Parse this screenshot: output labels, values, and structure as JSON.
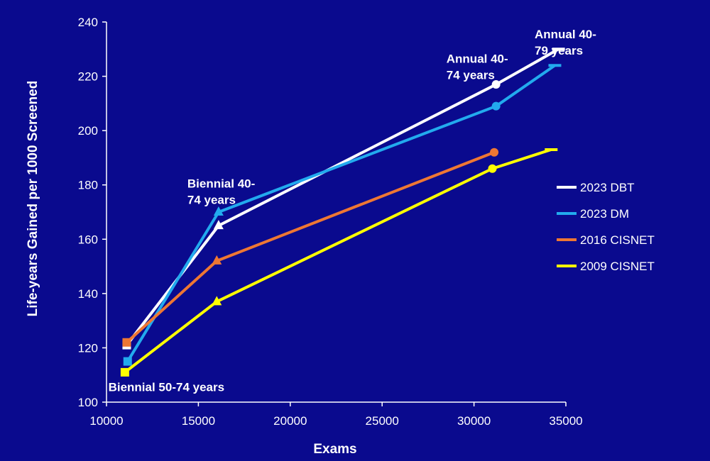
{
  "chart_data": {
    "type": "line",
    "xlabel": "Exams",
    "ylabel": "Life-years Gained per 1000 Screened",
    "xlim": [
      10000,
      35000
    ],
    "ylim": [
      100,
      240
    ],
    "xticks": [
      10000,
      15000,
      20000,
      25000,
      30000,
      35000
    ],
    "yticks": [
      100,
      120,
      140,
      160,
      180,
      200,
      220,
      240
    ],
    "grid": false,
    "legend_position": "right",
    "series": [
      {
        "name": "2023 DBT",
        "color": "#ffffff",
        "points": [
          [
            11100,
            121
          ],
          [
            16100,
            165
          ],
          [
            31200,
            217
          ],
          [
            34600,
            230
          ]
        ],
        "markers": [
          "square",
          "triangle",
          "circle",
          "dash"
        ]
      },
      {
        "name": "2023 DM",
        "color": "#22aaee",
        "points": [
          [
            11150,
            115
          ],
          [
            16100,
            170
          ],
          [
            31200,
            209
          ],
          [
            34400,
            224
          ]
        ],
        "markers": [
          "square",
          "triangle",
          "circle",
          "dash"
        ]
      },
      {
        "name": "2016 CISNET",
        "color": "#ee7733",
        "points": [
          [
            11100,
            122
          ],
          [
            16000,
            152
          ],
          [
            31100,
            192
          ]
        ],
        "markers": [
          "square",
          "triangle",
          "circle"
        ]
      },
      {
        "name": "2009 CISNET",
        "color": "#ffff00",
        "points": [
          [
            11000,
            111
          ],
          [
            16000,
            137
          ],
          [
            31000,
            186
          ],
          [
            34200,
            193
          ]
        ],
        "markers": [
          "square",
          "triangle",
          "circle",
          "dash"
        ]
      }
    ],
    "annotations": [
      {
        "lines": [
          "Biennial 50-74 years"
        ],
        "x": 10100,
        "y": 104
      },
      {
        "lines": [
          "Biennial 40-",
          "74 years"
        ],
        "x": 14400,
        "y": 179
      },
      {
        "lines": [
          "Annual 40-",
          "74 years"
        ],
        "x": 28500,
        "y": 225
      },
      {
        "lines": [
          "Annual 40-",
          "79 years"
        ],
        "x": 33300,
        "y": 234
      }
    ]
  }
}
